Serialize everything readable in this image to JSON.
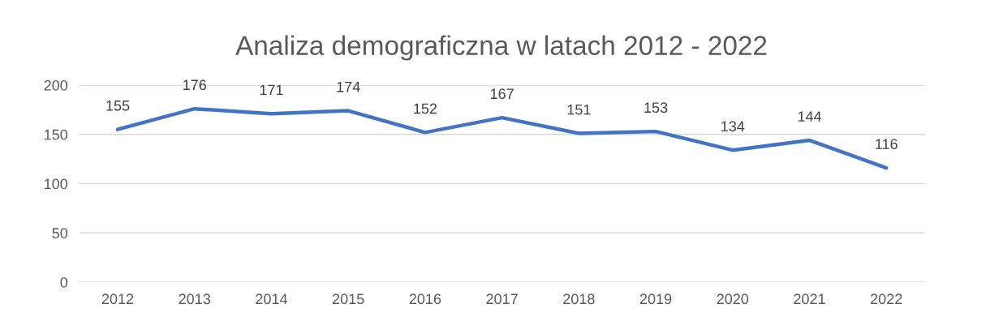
{
  "chart_data": {
    "type": "line",
    "title": "Analiza demograficzna w latach 2012 - 2022",
    "categories": [
      "2012",
      "2013",
      "2014",
      "2015",
      "2016",
      "2017",
      "2018",
      "2019",
      "2020",
      "2021",
      "2022"
    ],
    "series": [
      {
        "color": "#4472c4",
        "values": [
          155,
          176,
          171,
          174,
          152,
          167,
          151,
          153,
          134,
          144,
          116
        ]
      }
    ],
    "ylim": [
      0,
      200
    ],
    "yticks": [
      0,
      50,
      100,
      150,
      200
    ],
    "grid": "y",
    "data_labels": true
  }
}
